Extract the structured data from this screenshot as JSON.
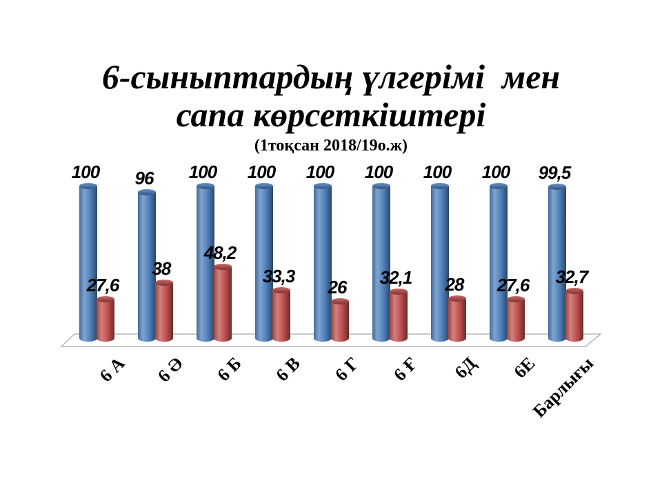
{
  "slide": {
    "title_line1": "6-сыныптардың үлгерімі  мен",
    "title_line2": "сапа көрсеткіштері",
    "subtitle": "(1тоқсан 2018/19о.ж)",
    "background": "#ffffff"
  },
  "chart_data": {
    "type": "bar",
    "bar_style": "3d-cylinder",
    "title": "6-сыныптардың үлгерімі мен сапа көрсеткіштері",
    "subtitle": "(1тоқсан 2018/19о.ж)",
    "categories": [
      "6 А",
      "6 Ә",
      "6 Б",
      "6 В",
      "6 Г",
      "6 Ғ",
      "6Д",
      "6Е",
      "Барлығы"
    ],
    "series": [
      {
        "name": "blue-series",
        "color": "#4f81bd",
        "values": [
          100,
          96,
          100,
          100,
          100,
          100,
          100,
          100,
          99.5
        ],
        "display_labels": [
          "100",
          "96",
          "100",
          "100",
          "100",
          "100",
          "100",
          "100",
          "99,5"
        ]
      },
      {
        "name": "red-series",
        "color": "#c0504d",
        "values": [
          27.6,
          38,
          48.2,
          33.3,
          26,
          32.1,
          28,
          27.6,
          32.7
        ],
        "display_labels": [
          "27,6",
          "38",
          "48,2",
          "33,3",
          "26",
          "32,1",
          "28",
          "27,6",
          "32,7"
        ]
      }
    ],
    "ylim": [
      0,
      100
    ],
    "grid": false,
    "legend": "none",
    "value_labels": true,
    "value_label_color": "#000000",
    "category_label_color": "#000000",
    "floor_outline_color": "#a6a6a6"
  }
}
